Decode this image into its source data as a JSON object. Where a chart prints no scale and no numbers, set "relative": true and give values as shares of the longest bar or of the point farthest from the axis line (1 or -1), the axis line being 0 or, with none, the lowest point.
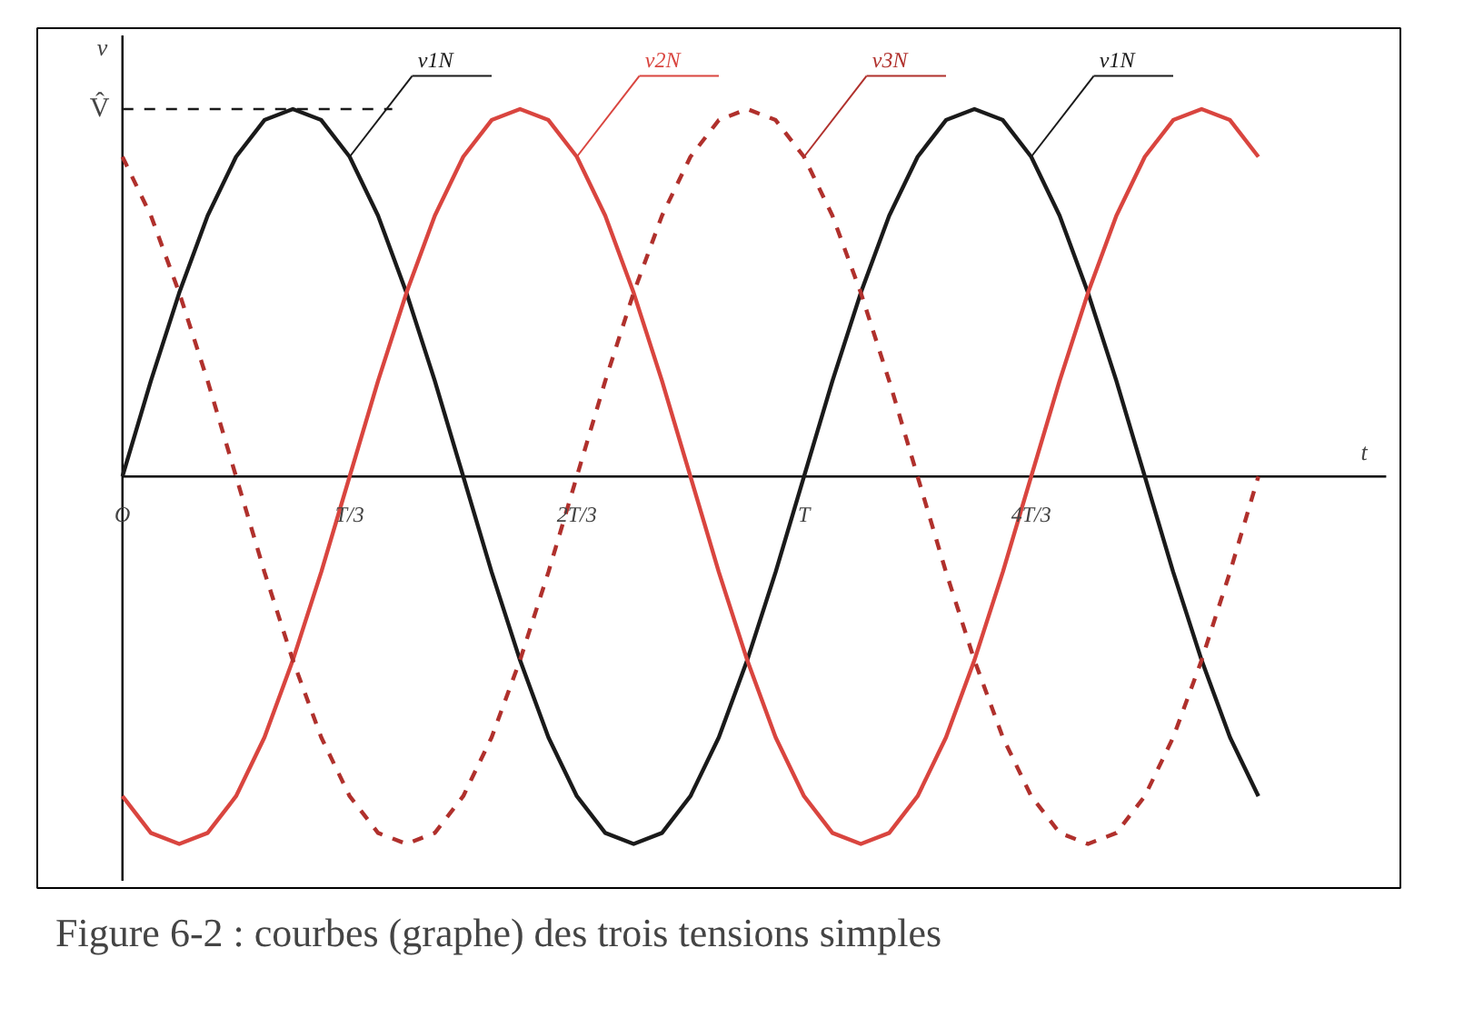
{
  "chart_data": {
    "type": "line",
    "xlabel": "t",
    "ylabel": "v",
    "relative": true,
    "categories": [
      "O",
      null,
      null,
      null,
      null,
      null,
      null,
      null,
      "T/3",
      null,
      null,
      null,
      null,
      null,
      null,
      null,
      "2T/3",
      null,
      null,
      null,
      null,
      null,
      null,
      null,
      "T",
      null,
      null,
      null,
      null,
      null,
      null,
      null,
      "4T/3",
      null,
      null,
      null,
      null,
      null,
      null,
      null,
      null
    ],
    "series": [
      {
        "name": "v1N",
        "color": "#1a1a1a",
        "line_style": "solid",
        "values": [
          0,
          0.26,
          0.5,
          0.71,
          0.87,
          0.97,
          1,
          0.97,
          0.87,
          0.71,
          0.5,
          0.26,
          0,
          -0.26,
          -0.5,
          -0.71,
          -0.87,
          -0.97,
          -1,
          -0.97,
          -0.87,
          -0.71,
          -0.5,
          -0.26,
          0,
          0.26,
          0.5,
          0.71,
          0.87,
          0.97,
          1,
          0.97,
          0.87,
          0.71,
          0.5,
          0.26,
          0,
          -0.26,
          -0.5,
          -0.71,
          -0.87
        ]
      },
      {
        "name": "v2N",
        "color": "#d9453f",
        "line_style": "solid",
        "values": [
          -0.87,
          -0.97,
          -1,
          -0.97,
          -0.87,
          -0.71,
          -0.5,
          -0.26,
          0,
          0.26,
          0.5,
          0.71,
          0.87,
          0.97,
          1,
          0.97,
          0.87,
          0.71,
          0.5,
          0.26,
          0,
          -0.26,
          -0.5,
          -0.71,
          -0.87,
          -0.97,
          -1,
          -0.97,
          -0.87,
          -0.71,
          -0.5,
          -0.26,
          0,
          0.26,
          0.5,
          0.71,
          0.87,
          0.97,
          1,
          0.97,
          0.87
        ]
      },
      {
        "name": "v3N",
        "color": "#b0302c",
        "line_style": "dashed",
        "values": [
          0.87,
          0.71,
          0.5,
          0.26,
          0,
          -0.26,
          -0.5,
          -0.71,
          -0.87,
          -0.97,
          -1,
          -0.97,
          -0.87,
          -0.71,
          -0.5,
          -0.26,
          0,
          0.26,
          0.5,
          0.71,
          0.87,
          0.97,
          1,
          0.97,
          0.87,
          0.71,
          0.5,
          0.26,
          0,
          -0.26,
          -0.5,
          -0.71,
          -0.87,
          -0.97,
          -1,
          -0.97,
          -0.87,
          -0.71,
          -0.5,
          -0.26,
          0
        ]
      }
    ],
    "marker": "none",
    "annotations": [
      "V̂",
      "v1N",
      "Figure 6-2 : courbes (graphe) des trois tensions simples"
    ]
  }
}
